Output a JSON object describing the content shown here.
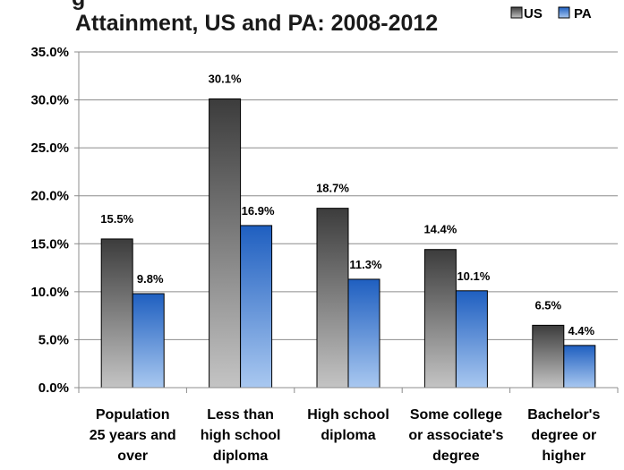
{
  "chart_data": {
    "type": "bar",
    "title_lines": [
      "g",
      "Attainment, US and PA: 2008-2012"
    ],
    "categories": [
      [
        "Population",
        "25 years and",
        "over"
      ],
      [
        "Less than",
        "high school",
        "diploma"
      ],
      [
        "High school",
        "diploma"
      ],
      [
        "Some college",
        "or associate's",
        "degree"
      ],
      [
        "Bachelor's",
        "degree or",
        "higher"
      ]
    ],
    "series": [
      {
        "name": "US",
        "values": [
          15.5,
          30.1,
          18.7,
          14.4,
          6.5
        ],
        "labels": [
          "15.5%",
          "30.1%",
          "18.7%",
          "14.4%",
          "6.5%"
        ]
      },
      {
        "name": "PA",
        "values": [
          9.8,
          16.9,
          11.3,
          10.1,
          4.4
        ],
        "labels": [
          "9.8%",
          "16.9%",
          "11.3%",
          "10.1%",
          "4.4%"
        ]
      }
    ],
    "yticks": [
      "0.0%",
      "5.0%",
      "10.0%",
      "15.0%",
      "20.0%",
      "25.0%",
      "30.0%",
      "35.0%"
    ],
    "ylim": [
      0,
      35
    ],
    "ytick_step": 5,
    "grid": true,
    "legend_position": "top-right",
    "colors": {
      "US_dark": "#3c3c3c",
      "US_light": "#c4c4c4",
      "PA_dark": "#1f5fc0",
      "PA_light": "#a9c8f0",
      "grid": "#8c8c8c"
    }
  }
}
